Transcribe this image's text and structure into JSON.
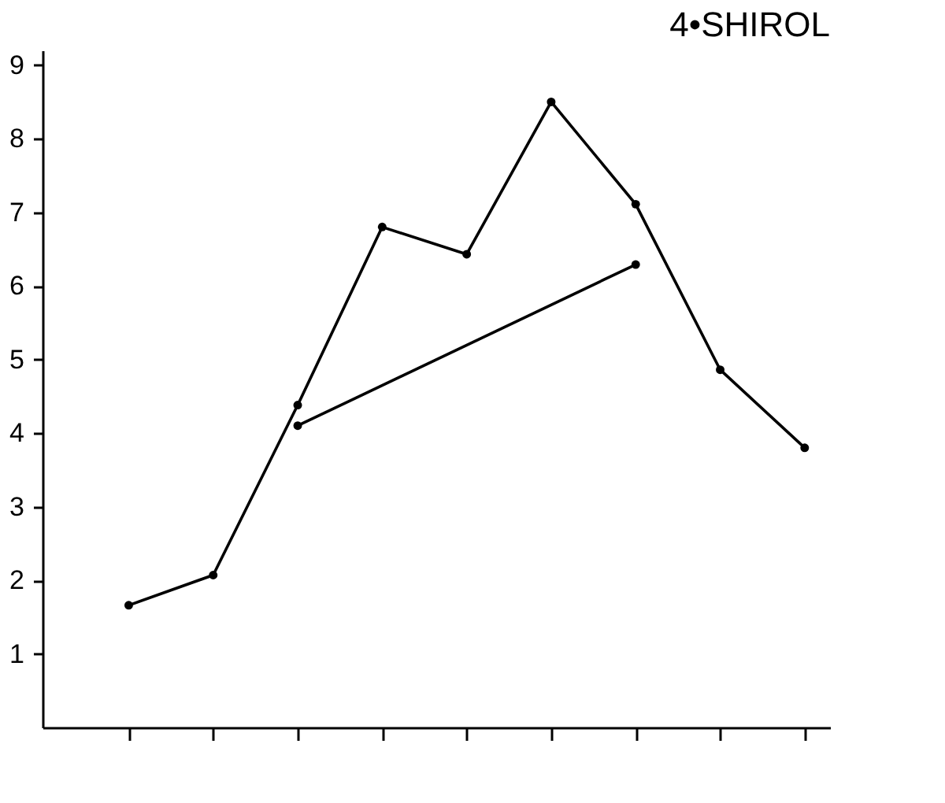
{
  "chart_data": {
    "type": "line",
    "title": "4•SHIROL",
    "categories": [
      null,
      null,
      null,
      null,
      null,
      null,
      null,
      null,
      null
    ],
    "ylim": [
      0,
      9.2
    ],
    "yticks": [
      1,
      2,
      3,
      4,
      5,
      6,
      7,
      8,
      9
    ],
    "tick_labels": "y",
    "grid": false,
    "series": [
      {
        "color": "#000000",
        "marker": "circle",
        "values": [
          1.66,
          2.07,
          4.38,
          6.8,
          6.43,
          8.5,
          7.11,
          4.86,
          3.8
        ]
      },
      {
        "color": "#000000",
        "marker": "circle",
        "values": [
          null,
          null,
          4.1,
          null,
          null,
          null,
          6.29,
          null,
          null
        ]
      }
    ]
  }
}
